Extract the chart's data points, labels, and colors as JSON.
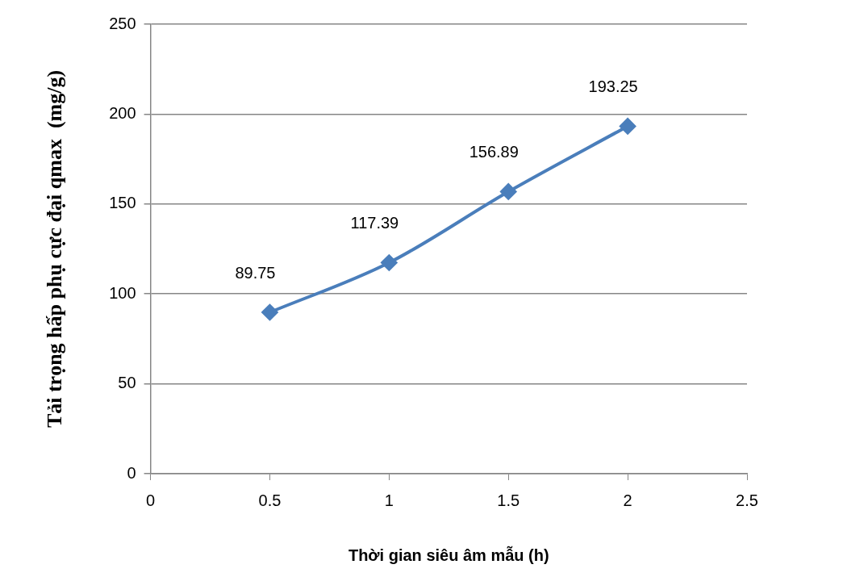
{
  "chart_data": {
    "type": "line",
    "xlabel": "Thời gian siêu âm mẫu (h)",
    "ylabel": "Tải trọng hấp phụ cực đại qmax  (mg/g)",
    "x": [
      0.5,
      1,
      1.5,
      2
    ],
    "series": [
      {
        "color": "#4a7ebb",
        "values": [
          89.75,
          117.39,
          156.89,
          193.25
        ]
      }
    ],
    "xlim": [
      0,
      2.5
    ],
    "xticks": [
      0,
      0.5,
      1,
      1.5,
      2,
      2.5
    ],
    "ylim": [
      0,
      250
    ],
    "yticks": [
      0,
      50,
      100,
      150,
      200,
      250
    ],
    "grid": "y",
    "legend": false,
    "marker": "diamond",
    "line_style": "solid",
    "data_labels": true
  }
}
